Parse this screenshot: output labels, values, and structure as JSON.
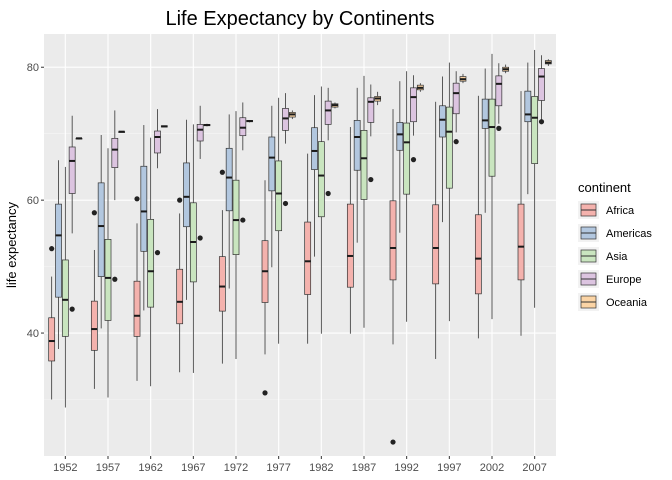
{
  "chart_data": {
    "type": "boxplot",
    "title": "Life Expectancy by Continents",
    "xlabel": "",
    "ylabel": "life expectancy",
    "ylim": [
      21.5,
      85.0
    ],
    "yticks": [
      40,
      60,
      80
    ],
    "grid": true,
    "legend_position": "right",
    "legend_title": "continent",
    "categories": [
      "1952",
      "1957",
      "1962",
      "1967",
      "1972",
      "1977",
      "1982",
      "1987",
      "1992",
      "1997",
      "2002",
      "2007"
    ],
    "series": [
      {
        "name": "Africa",
        "fill": "#f4b2ad",
        "boxes": [
          {
            "min": 30.0,
            "q1": 35.8,
            "median": 38.8,
            "q3": 42.3,
            "max": 48.5,
            "outliers": [
              52.7
            ]
          },
          {
            "min": 31.6,
            "q1": 37.4,
            "median": 40.6,
            "q3": 44.8,
            "max": 52.5,
            "outliers": [
              58.1
            ]
          },
          {
            "min": 32.8,
            "q1": 39.5,
            "median": 42.6,
            "q3": 47.8,
            "max": 56.5,
            "outliers": [
              60.2
            ]
          },
          {
            "min": 34.1,
            "q1": 41.4,
            "median": 44.7,
            "q3": 49.6,
            "max": 58.0,
            "outliers": [
              60.0
            ]
          },
          {
            "min": 35.4,
            "q1": 43.3,
            "median": 47.0,
            "q3": 51.5,
            "max": 58.5,
            "outliers": [
              64.2
            ]
          },
          {
            "min": 36.8,
            "q1": 44.6,
            "median": 49.3,
            "q3": 53.9,
            "max": 63.0,
            "outliers": [
              31.0
            ]
          },
          {
            "min": 38.4,
            "q1": 45.8,
            "median": 50.8,
            "q3": 56.7,
            "max": 67.0,
            "outliers": []
          },
          {
            "min": 39.9,
            "q1": 46.9,
            "median": 51.6,
            "q3": 59.4,
            "max": 71.0,
            "outliers": []
          },
          {
            "min": 38.3,
            "q1": 48.0,
            "median": 52.8,
            "q3": 59.9,
            "max": 73.7,
            "outliers": [
              23.6
            ]
          },
          {
            "min": 36.1,
            "q1": 47.4,
            "median": 52.8,
            "q3": 59.3,
            "max": 74.8,
            "outliers": []
          },
          {
            "min": 39.2,
            "q1": 45.9,
            "median": 51.2,
            "q3": 57.8,
            "max": 75.7,
            "outliers": []
          },
          {
            "min": 39.6,
            "q1": 48.0,
            "median": 53.0,
            "q3": 59.4,
            "max": 76.4,
            "outliers": []
          }
        ]
      },
      {
        "name": "Americas",
        "fill": "#b2c7df",
        "boxes": [
          {
            "min": 37.6,
            "q1": 45.4,
            "median": 54.7,
            "q3": 59.4,
            "max": 66.0,
            "outliers": []
          },
          {
            "min": 40.7,
            "q1": 48.5,
            "median": 56.1,
            "q3": 62.6,
            "max": 69.8,
            "outliers": []
          },
          {
            "min": 43.4,
            "q1": 52.3,
            "median": 58.3,
            "q3": 65.1,
            "max": 71.3,
            "outliers": []
          },
          {
            "min": 45.0,
            "q1": 56.0,
            "median": 60.5,
            "q3": 65.6,
            "max": 72.1,
            "outliers": []
          },
          {
            "min": 46.7,
            "q1": 58.4,
            "median": 63.4,
            "q3": 67.8,
            "max": 72.9,
            "outliers": []
          },
          {
            "min": 49.9,
            "q1": 61.4,
            "median": 66.4,
            "q3": 69.5,
            "max": 74.2,
            "outliers": []
          },
          {
            "min": 51.5,
            "q1": 64.6,
            "median": 67.4,
            "q3": 70.9,
            "max": 75.8,
            "outliers": []
          },
          {
            "min": 53.6,
            "q1": 64.5,
            "median": 69.5,
            "q3": 72.0,
            "max": 76.9,
            "outliers": []
          },
          {
            "min": 55.1,
            "q1": 67.5,
            "median": 69.9,
            "q3": 71.7,
            "max": 77.9,
            "outliers": []
          },
          {
            "min": 56.7,
            "q1": 69.5,
            "median": 72.1,
            "q3": 74.2,
            "max": 78.6,
            "outliers": []
          },
          {
            "min": 58.1,
            "q1": 70.8,
            "median": 72.0,
            "q3": 75.2,
            "max": 79.8,
            "outliers": []
          },
          {
            "min": 60.9,
            "q1": 71.8,
            "median": 72.9,
            "q3": 76.4,
            "max": 80.7,
            "outliers": []
          }
        ]
      },
      {
        "name": "Asia",
        "fill": "#c9e5bf",
        "boxes": [
          {
            "min": 28.8,
            "q1": 39.5,
            "median": 45.0,
            "q3": 51.0,
            "max": 65.0,
            "outliers": []
          },
          {
            "min": 30.3,
            "q1": 41.9,
            "median": 48.3,
            "q3": 54.1,
            "max": 67.8,
            "outliers": []
          },
          {
            "min": 32.0,
            "q1": 43.9,
            "median": 49.3,
            "q3": 57.1,
            "max": 69.4,
            "outliers": []
          },
          {
            "min": 34.0,
            "q1": 47.7,
            "median": 53.7,
            "q3": 59.6,
            "max": 71.4,
            "outliers": []
          },
          {
            "min": 36.1,
            "q1": 51.8,
            "median": 57.0,
            "q3": 63.0,
            "max": 73.4,
            "outliers": []
          },
          {
            "min": 38.4,
            "q1": 55.4,
            "median": 61.0,
            "q3": 65.9,
            "max": 75.4,
            "outliers": []
          },
          {
            "min": 39.9,
            "q1": 57.5,
            "median": 63.7,
            "q3": 68.8,
            "max": 77.1,
            "outliers": []
          },
          {
            "min": 40.8,
            "q1": 60.1,
            "median": 66.3,
            "q3": 70.5,
            "max": 78.7,
            "outliers": []
          },
          {
            "min": 41.7,
            "q1": 60.9,
            "median": 68.7,
            "q3": 71.6,
            "max": 79.4,
            "outliers": []
          },
          {
            "min": 41.8,
            "q1": 61.8,
            "median": 70.3,
            "q3": 74.0,
            "max": 80.7,
            "outliers": []
          },
          {
            "min": 42.1,
            "q1": 63.6,
            "median": 71.0,
            "q3": 75.2,
            "max": 82.0,
            "outliers": []
          },
          {
            "min": 43.8,
            "q1": 65.5,
            "median": 72.4,
            "q3": 75.6,
            "max": 82.6,
            "outliers": []
          }
        ]
      },
      {
        "name": "Europe",
        "fill": "#dcc4e0",
        "boxes": [
          {
            "min": 55.0,
            "q1": 61.0,
            "median": 65.9,
            "q3": 68.0,
            "max": 72.7,
            "outliers": [
              43.6
            ]
          },
          {
            "min": 60.0,
            "q1": 64.9,
            "median": 67.6,
            "q3": 69.3,
            "max": 73.5,
            "outliers": [
              48.1
            ]
          },
          {
            "min": 64.8,
            "q1": 67.1,
            "median": 69.5,
            "q3": 70.4,
            "max": 73.7,
            "outliers": [
              52.1
            ]
          },
          {
            "min": 66.2,
            "q1": 68.9,
            "median": 70.6,
            "q3": 71.4,
            "max": 74.2,
            "outliers": [
              54.3
            ]
          },
          {
            "min": 67.5,
            "q1": 69.7,
            "median": 70.9,
            "q3": 72.4,
            "max": 74.7,
            "outliers": [
              57.0
            ]
          },
          {
            "min": 68.5,
            "q1": 70.5,
            "median": 72.3,
            "q3": 73.8,
            "max": 76.1,
            "outliers": [
              59.5
            ]
          },
          {
            "min": 69.0,
            "q1": 71.4,
            "median": 73.5,
            "q3": 74.9,
            "max": 76.9,
            "outliers": [
              61.0
            ]
          },
          {
            "min": 69.6,
            "q1": 71.7,
            "median": 74.8,
            "q3": 75.4,
            "max": 77.4,
            "outliers": [
              63.1
            ]
          },
          {
            "min": 69.7,
            "q1": 71.8,
            "median": 75.5,
            "q3": 76.9,
            "max": 78.8,
            "outliers": [
              66.1
            ]
          },
          {
            "min": 70.2,
            "q1": 73.0,
            "median": 76.1,
            "q3": 77.6,
            "max": 79.4,
            "outliers": [
              68.8
            ]
          },
          {
            "min": 71.5,
            "q1": 74.2,
            "median": 77.5,
            "q3": 78.7,
            "max": 80.6,
            "outliers": [
              70.8
            ]
          },
          {
            "min": 71.8,
            "q1": 75.0,
            "median": 78.6,
            "q3": 79.8,
            "max": 81.8,
            "outliers": [
              71.8
            ]
          }
        ]
      },
      {
        "name": "Oceania",
        "fill": "#fbd4a5",
        "boxes": [
          {
            "min": 69.1,
            "q1": 69.2,
            "median": 69.3,
            "q3": 69.3,
            "max": 69.4,
            "outliers": []
          },
          {
            "min": 70.3,
            "q1": 70.3,
            "median": 70.3,
            "q3": 70.3,
            "max": 70.3,
            "outliers": []
          },
          {
            "min": 71.0,
            "q1": 71.0,
            "median": 71.1,
            "q3": 71.2,
            "max": 71.2,
            "outliers": []
          },
          {
            "min": 71.1,
            "q1": 71.2,
            "median": 71.3,
            "q3": 71.4,
            "max": 71.5,
            "outliers": []
          },
          {
            "min": 71.7,
            "q1": 71.8,
            "median": 71.9,
            "q3": 72.0,
            "max": 72.0,
            "outliers": []
          },
          {
            "min": 72.2,
            "q1": 72.5,
            "median": 72.9,
            "q3": 73.2,
            "max": 73.5,
            "outliers": []
          },
          {
            "min": 73.8,
            "q1": 74.0,
            "median": 74.3,
            "q3": 74.5,
            "max": 74.7,
            "outliers": []
          },
          {
            "min": 74.3,
            "q1": 74.9,
            "median": 75.3,
            "q3": 75.6,
            "max": 76.3,
            "outliers": []
          },
          {
            "min": 76.3,
            "q1": 76.6,
            "median": 76.9,
            "q3": 77.3,
            "max": 77.6,
            "outliers": []
          },
          {
            "min": 77.6,
            "q1": 77.9,
            "median": 78.2,
            "q3": 78.6,
            "max": 79.0,
            "outliers": []
          },
          {
            "min": 79.1,
            "q1": 79.4,
            "median": 79.7,
            "q3": 80.0,
            "max": 80.4,
            "outliers": []
          },
          {
            "min": 80.2,
            "q1": 80.5,
            "median": 80.7,
            "q3": 81.0,
            "max": 81.2,
            "outliers": []
          }
        ]
      }
    ]
  }
}
